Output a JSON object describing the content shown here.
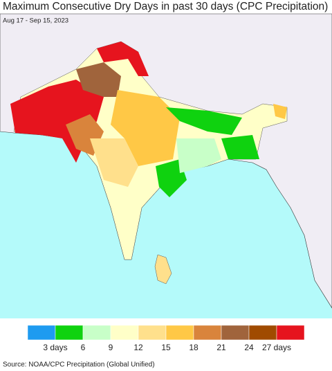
{
  "header": {
    "title": "Maximum Consecutive Dry Days in past 30 days (CPC Precipitation)",
    "subtitle": "Aug 17 - Sep 15, 2023"
  },
  "legend": {
    "colors": [
      "#1e9bf0",
      "#0fd20f",
      "#c8ffc8",
      "#ffffc8",
      "#ffe08c",
      "#ffc846",
      "#d9843c",
      "#a0643c",
      "#a04b00",
      "#e6141e"
    ],
    "labels": [
      "3 days",
      "6",
      "9",
      "12",
      "15",
      "18",
      "21",
      "24",
      "27 days"
    ]
  },
  "footer": {
    "source": "Source: NOAA/CPC Precipitation (Global Unified)"
  }
}
